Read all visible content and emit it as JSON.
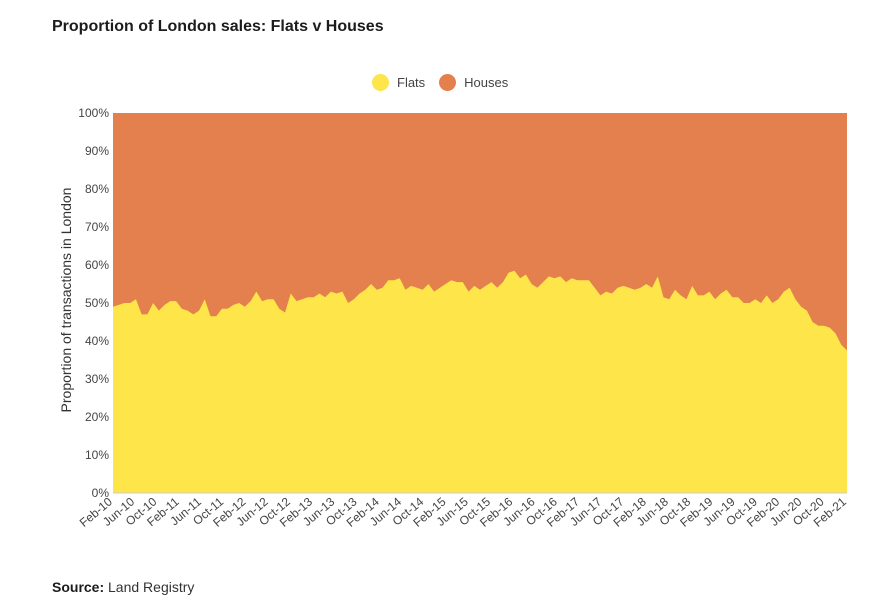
{
  "title": "Proportion of London sales: Flats v Houses",
  "source": {
    "label": "Source:",
    "text": "Land Registry"
  },
  "colors": {
    "flats": "#fde54a",
    "houses": "#e4804e"
  },
  "chart_data": {
    "type": "area",
    "stacked": true,
    "ylabel": "Proportion of transactions in London",
    "xlabel": "",
    "ylim": [
      0,
      100
    ],
    "y_ticks": [
      "0%",
      "10%",
      "20%",
      "30%",
      "40%",
      "50%",
      "60%",
      "70%",
      "80%",
      "90%",
      "100%"
    ],
    "x_tick_labels": [
      "Feb-10",
      "Jun-10",
      "Oct-10",
      "Feb-11",
      "Jun-11",
      "Oct-11",
      "Feb-12",
      "Jun-12",
      "Oct-12",
      "Feb-13",
      "Jun-13",
      "Oct-13",
      "Feb-14",
      "Jun-14",
      "Oct-14",
      "Feb-15",
      "Jun-15",
      "Oct-15",
      "Feb-16",
      "Jun-16",
      "Oct-16",
      "Feb-17",
      "Jun-17",
      "Oct-17",
      "Feb-18",
      "Jun-18",
      "Oct-18",
      "Feb-19",
      "Jun-19",
      "Oct-19",
      "Feb-20",
      "Jun-20",
      "Oct-20",
      "Feb-21"
    ],
    "legend_position": "top-center",
    "series": [
      {
        "name": "Flats",
        "values": [
          49,
          49.5,
          50,
          50,
          51,
          47,
          47,
          50,
          48,
          49.5,
          50.5,
          50.5,
          48.5,
          48,
          47,
          48,
          51,
          46.5,
          46.5,
          48.5,
          48.5,
          49.5,
          50,
          49,
          50.5,
          53,
          50.5,
          51,
          51,
          48.5,
          47.5,
          52.5,
          50.5,
          51,
          51.5,
          51.5,
          52.5,
          51.5,
          53,
          52.5,
          53,
          50,
          51,
          52.5,
          53.5,
          55,
          53.5,
          54,
          56,
          56,
          56.5,
          53.5,
          54.5,
          54,
          53.5,
          55,
          53,
          54,
          55,
          56,
          55.5,
          55.5,
          53,
          54.5,
          53.5,
          54.5,
          55.5,
          54,
          55.5,
          58,
          58.5,
          56.5,
          57.5,
          55,
          54,
          55.5,
          57,
          56.5,
          57,
          55.5,
          56.5,
          56,
          56,
          56,
          54,
          52,
          53,
          52.5,
          54,
          54.5,
          54,
          53.5,
          54,
          55,
          54,
          57,
          51.5,
          51,
          53.5,
          52,
          51,
          54.5,
          52,
          52,
          53,
          51,
          52.5,
          53.5,
          51.5,
          51.5,
          50,
          50,
          51,
          50,
          52,
          50,
          51,
          53,
          54,
          51,
          49,
          48,
          45,
          44,
          44,
          43.5,
          42,
          39,
          37.5
        ]
      },
      {
        "name": "Houses",
        "values": [
          51,
          50.5,
          50,
          50,
          49,
          53,
          53,
          50,
          52,
          50.5,
          49.5,
          49.5,
          51.5,
          52,
          53,
          52,
          49,
          53.5,
          53.5,
          51.5,
          51.5,
          50.5,
          50,
          51,
          49.5,
          47,
          49.5,
          49,
          49,
          51.5,
          52.5,
          47.5,
          49.5,
          49,
          48.5,
          48.5,
          47.5,
          48.5,
          47,
          47.5,
          47,
          50,
          49,
          47.5,
          46.5,
          45,
          46.5,
          46,
          44,
          44,
          43.5,
          46.5,
          45.5,
          46,
          46.5,
          45,
          47,
          46,
          45,
          44,
          44.5,
          44.5,
          47,
          45.5,
          46.5,
          45.5,
          44.5,
          46,
          44.5,
          42,
          41.5,
          43.5,
          42.5,
          45,
          46,
          44.5,
          43,
          43.5,
          43,
          44.5,
          43.5,
          44,
          44,
          44,
          46,
          48,
          47,
          47.5,
          46,
          45.5,
          46,
          46.5,
          46,
          45,
          46,
          43,
          48.5,
          49,
          46.5,
          48,
          49,
          45.5,
          48,
          48,
          47,
          49,
          47.5,
          46.5,
          48.5,
          48.5,
          50,
          50,
          49,
          50,
          48,
          50,
          49,
          47,
          46,
          49,
          51,
          52,
          55,
          56,
          56,
          56.5,
          58,
          61,
          62.5
        ]
      }
    ]
  }
}
